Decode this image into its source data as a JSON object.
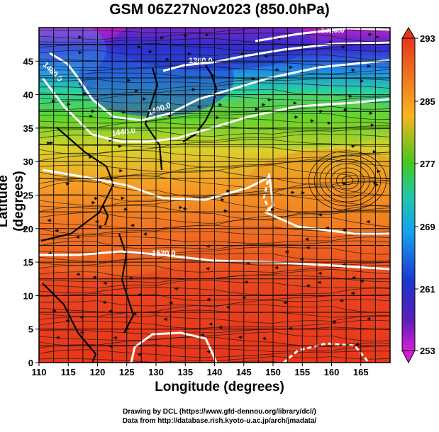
{
  "title": "GSM 06Z27Nov2023 (850.0hPa)",
  "x_axis": {
    "label": "Longitude (degrees)",
    "ticks": [
      "110",
      "115",
      "120",
      "125",
      "130",
      "135",
      "140",
      "145",
      "150",
      "155",
      "160",
      "165"
    ]
  },
  "y_axis": {
    "label": "Latitude  (degrees)",
    "ticks": [
      "0",
      "5",
      "10",
      "15",
      "20",
      "25",
      "30",
      "35",
      "40",
      "45"
    ]
  },
  "colorbar": {
    "labels": [
      "293",
      "285",
      "277",
      "269",
      "261",
      "253"
    ],
    "colors": [
      "#e8391c",
      "#f59a1e",
      "#3fc81d",
      "#19aef0",
      "#1a27c6",
      "#d21ad2"
    ]
  },
  "contour_labels": [
    "1320.0",
    "1360.0",
    "1400.0",
    "1440.0",
    "1480.0",
    "1520.0"
  ],
  "credits": {
    "line1": "Drawing by DCL (https://www.gfd-dennou.org/library/dcl/)",
    "line2": "Data from http://database.rish.kyoto-u.ac.jp/arch/jmadata/"
  },
  "chart_data": {
    "type": "heatmap",
    "title": "GSM 06Z27Nov2023 (850.0hPa)",
    "xlabel": "Longitude (degrees)",
    "ylabel": "Latitude  (degrees)",
    "xlim": [
      110,
      170
    ],
    "ylim": [
      0,
      50
    ],
    "color_range": [
      253,
      293
    ],
    "contour_levels": [
      1320,
      1360,
      1400,
      1440,
      1480,
      1520
    ],
    "grid": true
  }
}
